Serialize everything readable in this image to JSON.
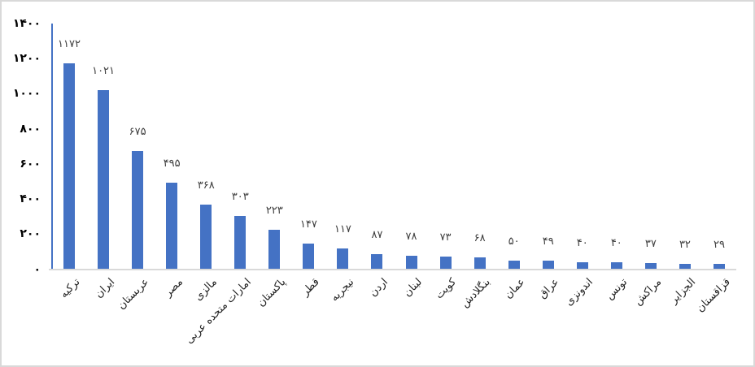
{
  "chart_data": {
    "type": "bar",
    "title": "",
    "xlabel": "",
    "ylabel": "",
    "ylim": [
      0,
      1400
    ],
    "grid": false,
    "legend": false,
    "rtl": true,
    "category_label_rotation_deg": -45,
    "categories": [
      "ترکیه",
      "ایران",
      "عربستان",
      "مصر",
      "مالزی",
      "امارات متحده عربی",
      "پاکستان",
      "قطر",
      "نیجریه",
      "اردن",
      "لبنان",
      "کویت",
      "بنگلادش",
      "عمان",
      "عراق",
      "اندونزی",
      "تونس",
      "مراکش",
      "الجزایر",
      "قزاقستان"
    ],
    "values": [
      1172,
      1021,
      675,
      495,
      368,
      303,
      223,
      147,
      117,
      87,
      78,
      73,
      68,
      50,
      49,
      40,
      40,
      37,
      32,
      29
    ],
    "value_labels": [
      "۱۱۷۲",
      "۱۰۲۱",
      "۶۷۵",
      "۴۹۵",
      "۳۶۸",
      "۳۰۳",
      "۲۲۳",
      "۱۴۷",
      "۱۱۷",
      "۸۷",
      "۷۸",
      "۷۳",
      "۶۸",
      "۵۰",
      "۴۹",
      "۴۰",
      "۴۰",
      "۳۷",
      "۳۲",
      "۲۹"
    ],
    "y_ticks": [
      {
        "value": 1400,
        "label": "۱۴۰۰"
      },
      {
        "value": 1200,
        "label": "۱۲۰۰"
      },
      {
        "value": 1000,
        "label": "۱۰۰۰"
      },
      {
        "value": 800,
        "label": "۸۰۰"
      },
      {
        "value": 600,
        "label": "۶۰۰"
      },
      {
        "value": 400,
        "label": "۴۰۰"
      },
      {
        "value": 200,
        "label": "۲۰۰"
      },
      {
        "value": 0,
        "label": "۰"
      }
    ],
    "colors": {
      "bar": "#4472C4",
      "y_axis_line": "#4472C4",
      "x_axis_line": "#D9D9D9",
      "value_label_text": "#3F3F3F",
      "y_tick_text": "#000000",
      "category_text": "#1F1F1F",
      "frame_border": "#D9D9D9",
      "background": "#FFFFFF"
    }
  }
}
